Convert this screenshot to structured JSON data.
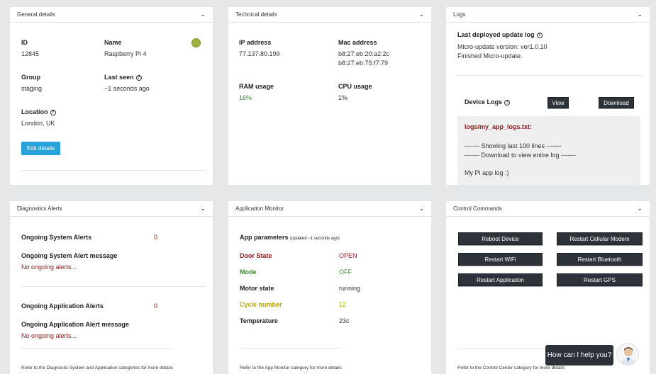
{
  "general": {
    "title": "General details",
    "id_label": "ID",
    "id_value": "12845",
    "name_label": "Name",
    "name_value": "Raspberry Pi 4",
    "group_label": "Group",
    "group_value": "staging",
    "last_seen_label": "Last seen",
    "last_seen_value": "~1 seconds ago",
    "location_label": "Location",
    "location_value": "London, UK",
    "edit_button": "Edit details",
    "status_color": "#9bb13a"
  },
  "technical": {
    "title": "Technical details",
    "ip_label": "IP address",
    "ip_value": "77.137.80.199",
    "mac_label": "Mac address",
    "mac_value_1": "b8:27:eb:20:a2:2c",
    "mac_value_2": "b8:27:eb:75:f7:79",
    "ram_label": "RAM usage",
    "ram_value": "16%",
    "cpu_label": "CPU usage",
    "cpu_value": "1%"
  },
  "logs": {
    "title": "Logs",
    "last_update_label": "Last deployed update log",
    "update_line_1": "Micro-update version: ver1.0.10",
    "update_line_2": "Finished Micro-update.",
    "device_logs_label": "Device Logs",
    "view_button": "View",
    "download_button": "Download",
    "file_name": "logs/my_app_logs.txt:",
    "log_line_1": "------- Showing last 100 lines -------",
    "log_line_2": "------- Download to view entire log -------",
    "log_line_3": "My Pi app log :)"
  },
  "diagnostics": {
    "title": "Diagnostics Alerts",
    "system_alerts_label": "Ongoing System Alerts",
    "system_alerts_count": "0",
    "system_msg_label": "Ongoing System Alert message",
    "system_msg_value": "No ongoing alerts...",
    "app_alerts_label": "Ongoing Application Alerts",
    "app_alerts_count": "0",
    "app_msg_label": "Ongoing Application Alert message",
    "app_msg_value": "No ongoing alerts...",
    "footer": "Refer to the Diagnostic System and Application categories for more details"
  },
  "app_monitor": {
    "title": "Application Monitor",
    "params_label": "App parameters",
    "params_updated": "(updated ~1 seconds ago)",
    "rows": [
      {
        "label": "Door State",
        "value": "OPEN",
        "color": "red"
      },
      {
        "label": "Mode",
        "value": "OFF",
        "color": "green"
      },
      {
        "label": "Motor state",
        "value": "running",
        "color": "default"
      },
      {
        "label": "Cycle number",
        "value": "12",
        "color": "yellow"
      },
      {
        "label": "Temperature",
        "value": "23c",
        "color": "default"
      }
    ],
    "footer": "Refer to the App Monitor category for more details"
  },
  "control": {
    "title": "Control Commands",
    "buttons": [
      "Reboot Device",
      "Restart Cellular Modem",
      "Restart WiFi",
      "Restart Bluetooth",
      "Restart Application",
      "Restart GPS"
    ],
    "footer": "Refer to the Control Center category for more details"
  },
  "chat": {
    "prompt": "How can I help you?"
  }
}
